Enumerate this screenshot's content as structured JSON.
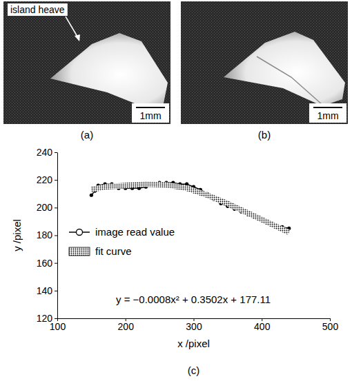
{
  "figure": {
    "panels": [
      {
        "label": "(a)",
        "annotation": "island heave",
        "scale_bar": "1mm"
      },
      {
        "label": "(b)",
        "scale_bar": "1mm"
      },
      {
        "label": "(c)"
      }
    ]
  },
  "chart_data": {
    "type": "line",
    "x_label": "x /pixel",
    "y_label": "y /pixel",
    "xlim": [
      100,
      500
    ],
    "xticks": [
      100,
      200,
      300,
      400,
      500
    ],
    "ylim": [
      120,
      240
    ],
    "yticks": [
      120,
      140,
      160,
      180,
      200,
      220,
      240
    ],
    "legend": "left",
    "annotations": [
      "y = −0.0008x² + 0.3502x + 177.11"
    ],
    "series": [
      {
        "name": "image read value",
        "color": "#000000",
        "marker": "circle",
        "line_style": "solid",
        "x": [
          150,
          155,
          160,
          170,
          180,
          190,
          200,
          210,
          220,
          230,
          240,
          250,
          260,
          270,
          280,
          290,
          300,
          310,
          320,
          330,
          340,
          350,
          360,
          370,
          380,
          390,
          400,
          410,
          420,
          430,
          440
        ],
        "values": [
          209,
          212,
          216,
          217,
          217,
          214,
          214,
          214,
          214,
          215,
          217,
          218,
          218,
          218,
          217,
          217,
          215,
          213,
          210,
          206,
          203,
          201,
          199,
          197,
          195,
          193,
          191,
          189,
          187,
          186,
          185
        ]
      },
      {
        "name": "fit curve",
        "color": "#000000",
        "line_style": "hatched",
        "x": [
          150,
          170,
          200,
          230,
          260,
          290,
          320,
          350,
          380,
          410,
          440
        ],
        "values": [
          213,
          215,
          216,
          217,
          216.5,
          214,
          209,
          203,
          196,
          189,
          182
        ]
      }
    ]
  }
}
